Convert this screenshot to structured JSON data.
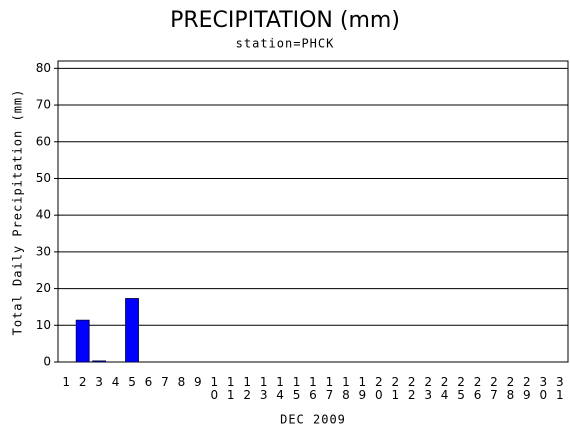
{
  "chart_data": {
    "type": "bar",
    "title": "PRECIPITATION (mm)",
    "subtitle": "station=PHCK",
    "y_label": "Total Daily Precipitation (mm)",
    "x_label": "DEC 2009",
    "categories": [
      "1",
      "2",
      "3",
      "4",
      "5",
      "6",
      "7",
      "8",
      "9",
      "10",
      "11",
      "12",
      "13",
      "14",
      "15",
      "16",
      "17",
      "18",
      "19",
      "20",
      "21",
      "22",
      "23",
      "24",
      "25",
      "26",
      "27",
      "28",
      "29",
      "30",
      "31"
    ],
    "values": [
      0,
      11.4,
      0.3,
      0,
      17.3,
      0,
      0,
      0,
      0,
      0,
      0,
      0,
      0,
      0,
      0,
      0,
      0,
      0,
      0,
      0,
      0,
      0,
      0,
      0,
      0,
      0,
      0,
      0,
      0,
      0,
      0
    ],
    "color": "#0000ff",
    "ylim": [
      0,
      82
    ],
    "yticks": [
      0,
      10,
      20,
      30,
      40,
      50,
      60,
      70,
      80
    ],
    "grid": true
  }
}
